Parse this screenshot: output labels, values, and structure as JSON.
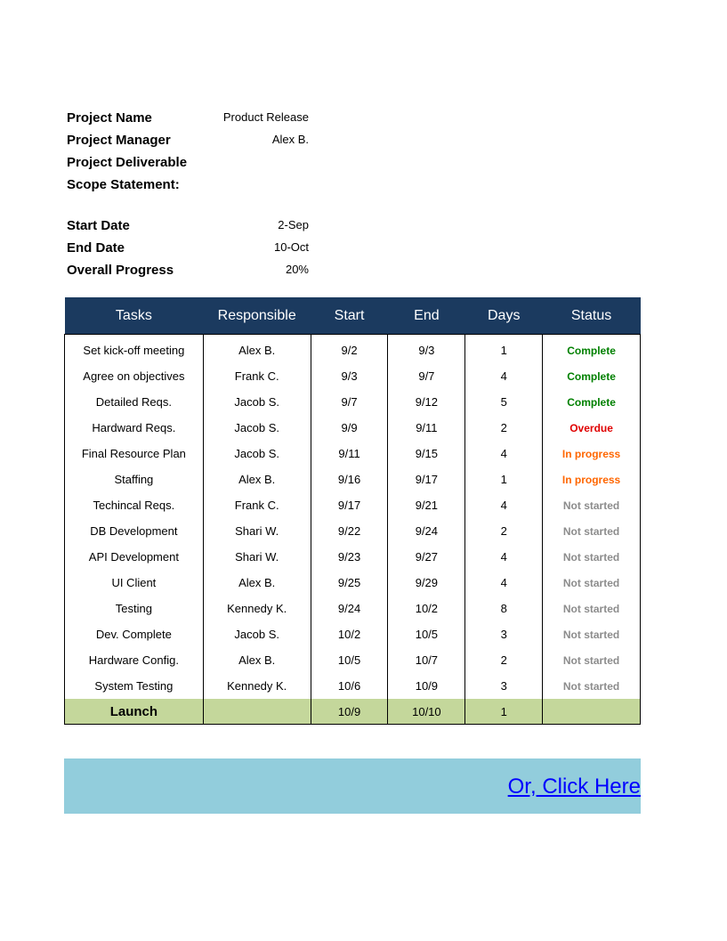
{
  "project": {
    "fields": [
      {
        "label": "Project Name",
        "value": "Product Release"
      },
      {
        "label": "Project Manager",
        "value": "Alex B."
      },
      {
        "label": "Project Deliverable",
        "value": ""
      },
      {
        "label": "Scope Statement:",
        "value": ""
      }
    ],
    "dates": [
      {
        "label": "Start Date",
        "value": "2-Sep"
      },
      {
        "label": "End Date",
        "value": "10-Oct"
      },
      {
        "label": "Overall Progress",
        "value": "20%"
      }
    ]
  },
  "table": {
    "headers": [
      "Tasks",
      "Responsible",
      "Start",
      "End",
      "Days",
      "Status"
    ],
    "status_colors": {
      "Complete": "#008000",
      "Overdue": "#e00000",
      "In progress": "#ff6600",
      "Not started": "#8c8c8c"
    },
    "rows": [
      [
        "Set kick-off meeting",
        "Alex B.",
        "9/2",
        "9/3",
        "1",
        "Complete"
      ],
      [
        "Agree on objectives",
        "Frank C.",
        "9/3",
        "9/7",
        "4",
        "Complete"
      ],
      [
        "Detailed Reqs.",
        "Jacob S.",
        "9/7",
        "9/12",
        "5",
        "Complete"
      ],
      [
        "Hardward Reqs.",
        "Jacob S.",
        "9/9",
        "9/11",
        "2",
        "Overdue"
      ],
      [
        "Final Resource Plan",
        "Jacob S.",
        "9/11",
        "9/15",
        "4",
        "In progress"
      ],
      [
        "Staffing",
        "Alex B.",
        "9/16",
        "9/17",
        "1",
        "In progress"
      ],
      [
        "Techincal Reqs.",
        "Frank C.",
        "9/17",
        "9/21",
        "4",
        "Not started"
      ],
      [
        "DB Development",
        "Shari W.",
        "9/22",
        "9/24",
        "2",
        "Not started"
      ],
      [
        "API Development",
        "Shari W.",
        "9/23",
        "9/27",
        "4",
        "Not started"
      ],
      [
        "UI Client",
        "Alex B.",
        "9/25",
        "9/29",
        "4",
        "Not started"
      ],
      [
        "Testing",
        "Kennedy K.",
        "9/24",
        "10/2",
        "8",
        "Not started"
      ],
      [
        "Dev. Complete",
        "Jacob S.",
        "10/2",
        "10/5",
        "3",
        "Not started"
      ],
      [
        "Hardware Config.",
        "Alex B.",
        "10/5",
        "10/7",
        "2",
        "Not started"
      ],
      [
        "System Testing",
        "Kennedy K.",
        "10/6",
        "10/9",
        "3",
        "Not started"
      ]
    ],
    "launch": [
      "Launch",
      "",
      "10/9",
      "10/10",
      "1",
      ""
    ]
  },
  "banner": {
    "link_label": "Or, Click Here",
    "color": "#92cddc"
  }
}
